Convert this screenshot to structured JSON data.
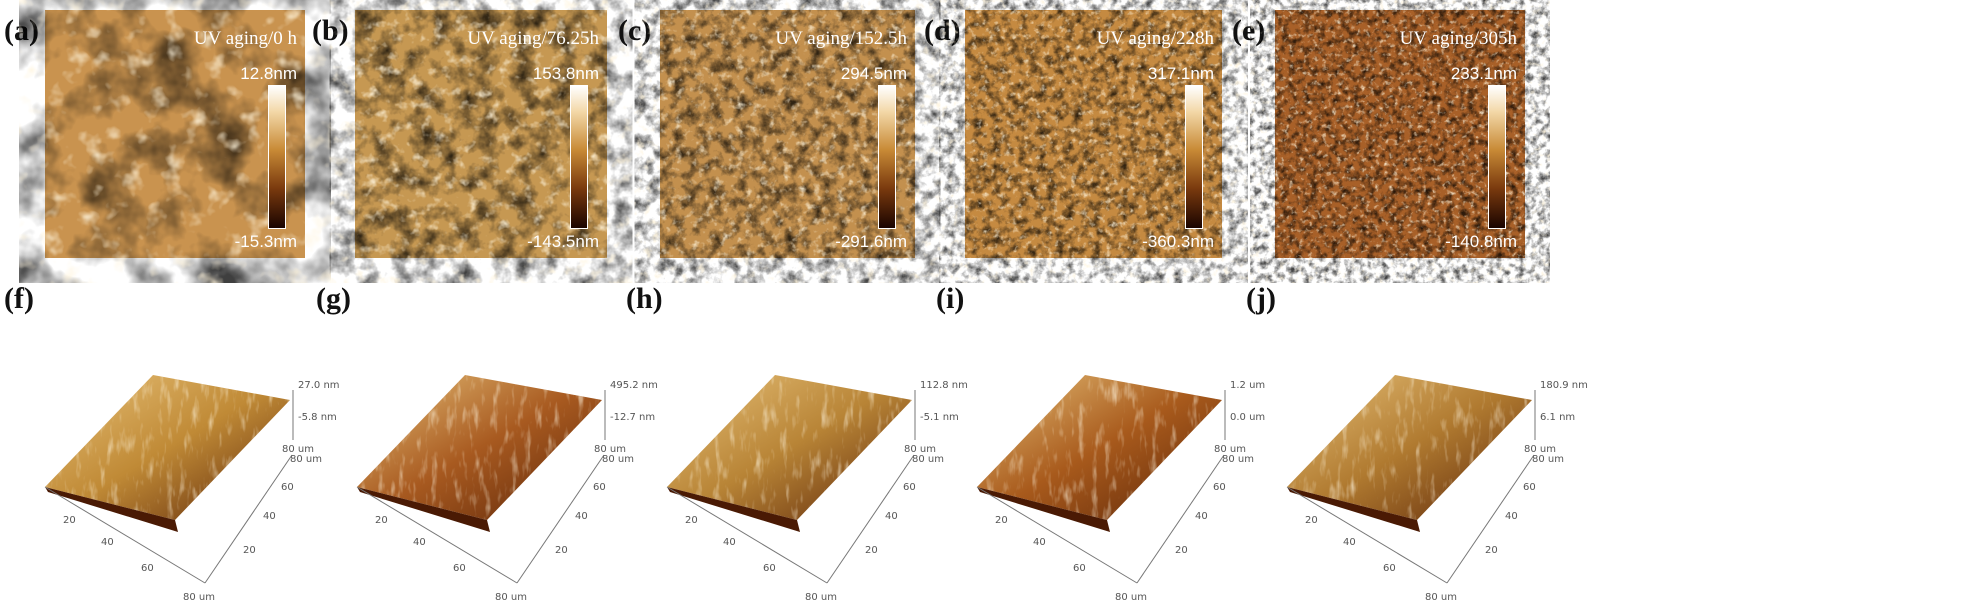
{
  "figure": {
    "top_panels": [
      {
        "label": "(a)",
        "title": "UV aging/0 h",
        "max": "12.8nm",
        "min": "-15.3nm",
        "base": "#b87a30",
        "light": "#e9c48a",
        "dark": "#5a2a08"
      },
      {
        "label": "(b)",
        "title": "UV aging/76.25h",
        "max": "153.8nm",
        "min": "-143.5nm",
        "base": "#b0782c",
        "light": "#f1d59c",
        "dark": "#3a1a04"
      },
      {
        "label": "(c)",
        "title": "UV aging/152.5h",
        "max": "294.5nm",
        "min": "-291.6nm",
        "base": "#a8661c",
        "light": "#f6e0ac",
        "dark": "#3a1400"
      },
      {
        "label": "(d)",
        "title": "UV aging/228h",
        "max": "317.1nm",
        "min": "-360.3nm",
        "base": "#b36f24",
        "light": "#e8bd78",
        "dark": "#4a1e04"
      },
      {
        "label": "(e)",
        "title": "UV aging/305h",
        "max": "233.1nm",
        "min": "-140.8nm",
        "base": "#8a3a0a",
        "light": "#e0a860",
        "dark": "#3a0e00"
      }
    ],
    "bottom_panels": [
      {
        "label": "(f)",
        "zmax": "27.0 nm",
        "zmid": "-5.8 nm",
        "unit_a": "80 um",
        "unit_b": "80 um",
        "x_end": "80 um",
        "ticks": [
          "20",
          "40",
          "60"
        ],
        "color": "#c08a36"
      },
      {
        "label": "(g)",
        "zmax": "495.2 nm",
        "zmid": "-12.7 nm",
        "unit_a": "80 um",
        "unit_b": "80 um",
        "x_end": "80 um",
        "ticks": [
          "20",
          "40",
          "60"
        ],
        "color": "#a85a20"
      },
      {
        "label": "(h)",
        "zmax": "112.8 nm",
        "zmid": "-5.1 nm",
        "unit_a": "80 um",
        "unit_b": "80 um",
        "x_end": "80 um",
        "ticks": [
          "20",
          "40",
          "60"
        ],
        "color": "#b88436"
      },
      {
        "label": "(i)",
        "zmax": "1.2 um",
        "zmid": "0.0 um",
        "unit_a": "80 um",
        "unit_b": "80 um",
        "x_end": "80 um",
        "ticks": [
          "20",
          "40",
          "60"
        ],
        "color": "#a85a1c"
      },
      {
        "label": "(j)",
        "zmax": "180.9 nm",
        "zmid": "6.1 nm",
        "unit_a": "80 um",
        "unit_b": "80 um",
        "x_end": "80 um",
        "ticks": [
          "20",
          "40",
          "60"
        ],
        "color": "#b07a30"
      }
    ]
  }
}
